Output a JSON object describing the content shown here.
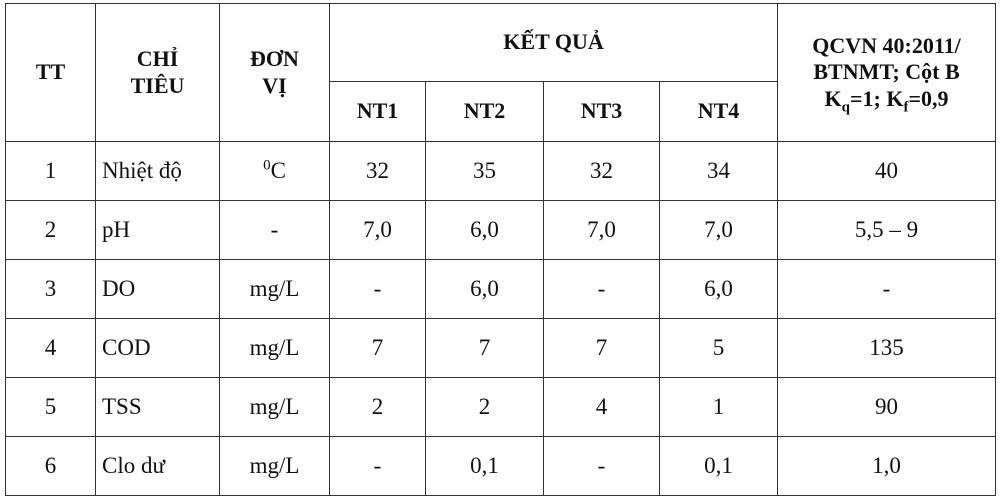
{
  "header": {
    "tt": "TT",
    "chi_tieu": [
      "CHỈ",
      "TIÊU"
    ],
    "don_vi": [
      "ĐƠN",
      "VỊ"
    ],
    "ket_qua": "KẾT QUẢ",
    "sites": [
      "NT1",
      "NT2",
      "NT3",
      "NT4"
    ],
    "qcvn": {
      "line1": "QCVN 40:2011/",
      "line2": "BTNMT; Cột B",
      "kq_k": "K",
      "kq_sub": "q",
      "kq_val": "=1; ",
      "kf_k": "K",
      "kf_sub": "f",
      "kf_val": "=0,9"
    }
  },
  "rows": [
    {
      "tt": "1",
      "indicator": "Nhiệt độ",
      "unit_sup": "0",
      "unit": "C",
      "nt1": "32",
      "nt2": "35",
      "nt3": "32",
      "nt4": "34",
      "limit": "40"
    },
    {
      "tt": "2",
      "indicator": "pH",
      "unit_sup": "",
      "unit": "-",
      "nt1": "7,0",
      "nt2": "6,0",
      "nt3": "7,0",
      "nt4": "7,0",
      "limit": "5,5 – 9"
    },
    {
      "tt": "3",
      "indicator": "DO",
      "unit_sup": "",
      "unit": "mg/L",
      "nt1": "-",
      "nt2": "6,0",
      "nt3": "-",
      "nt4": "6,0",
      "limit": "-"
    },
    {
      "tt": "4",
      "indicator": "COD",
      "unit_sup": "",
      "unit": "mg/L",
      "nt1": "7",
      "nt2": "7",
      "nt3": "7",
      "nt4": "5",
      "limit": "135"
    },
    {
      "tt": "5",
      "indicator": "TSS",
      "unit_sup": "",
      "unit": "mg/L",
      "nt1": "2",
      "nt2": "2",
      "nt3": "4",
      "nt4": "1",
      "limit": "90"
    },
    {
      "tt": "6",
      "indicator": "Clo dư",
      "unit_sup": "",
      "unit": "mg/L",
      "nt1": "-",
      "nt2": "0,1",
      "nt3": "-",
      "nt4": "0,1",
      "limit": "1,0"
    }
  ]
}
